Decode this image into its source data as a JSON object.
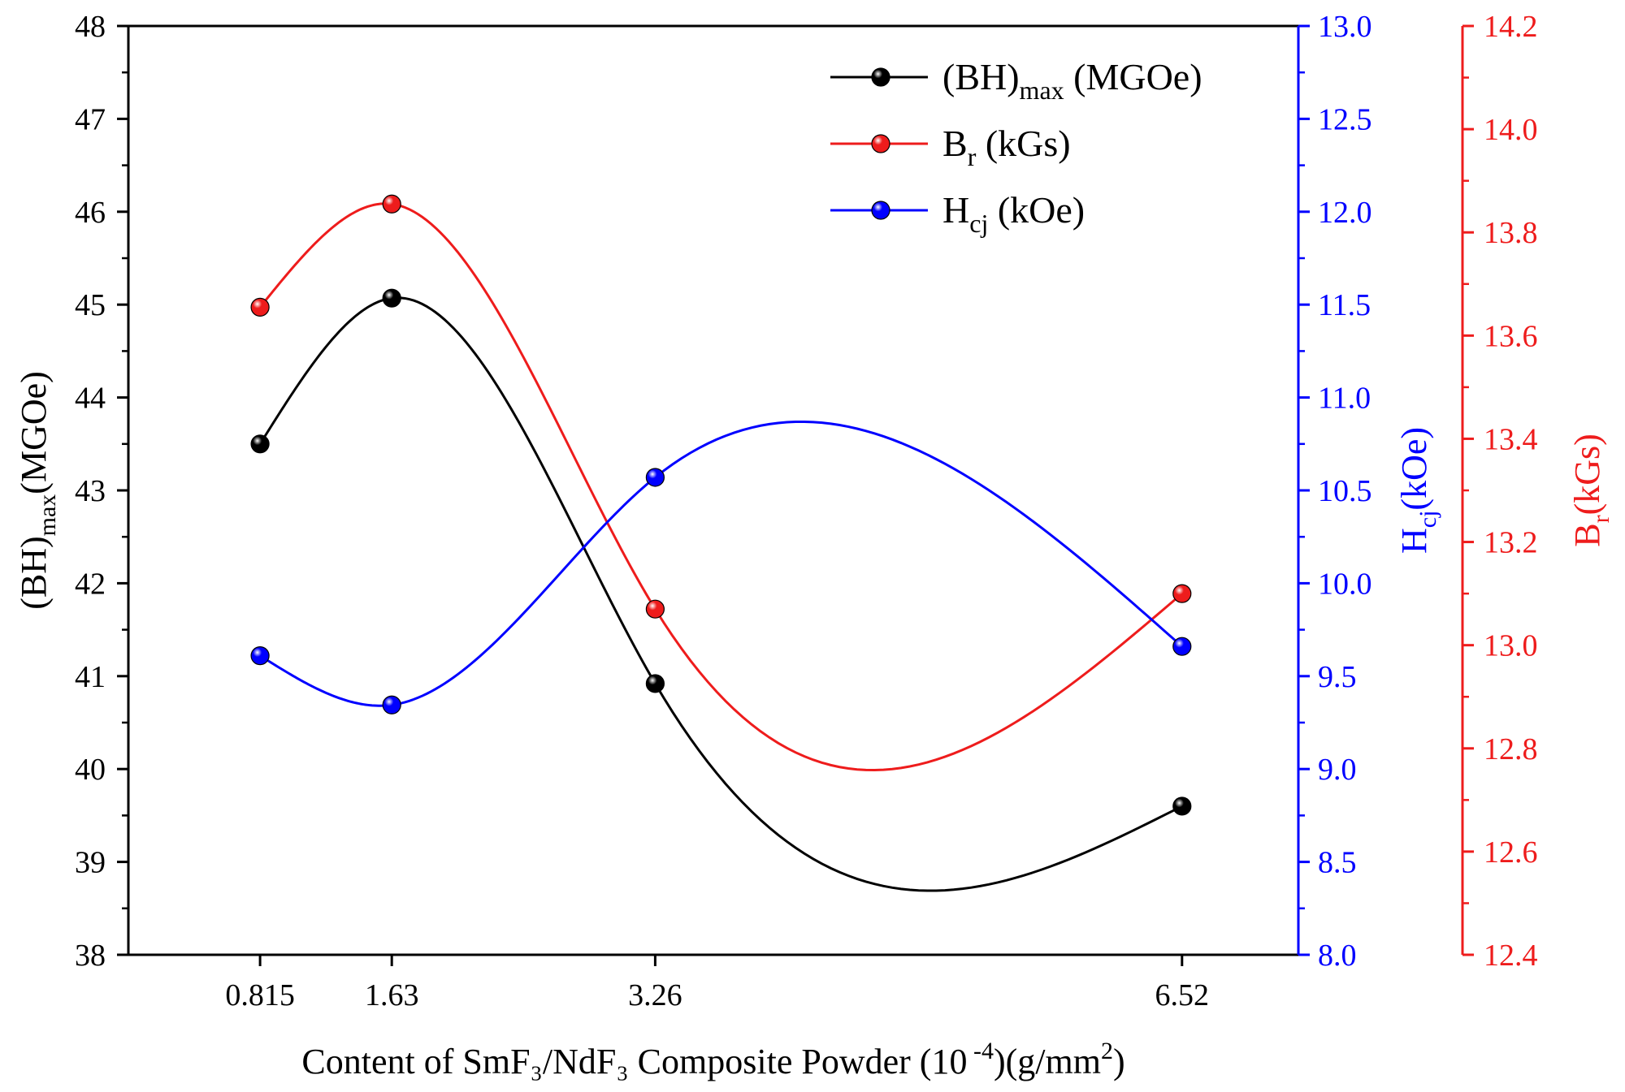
{
  "chart_data": {
    "type": "line",
    "x": [
      0.815,
      1.63,
      3.26,
      6.52
    ],
    "x_tick_labels": [
      "0.815",
      "1.63",
      "3.26",
      "6.52"
    ],
    "xlabel": {
      "prefix": "Content of  SmF₃/NdF₃ Composite Powder (10",
      "exp": " -4",
      "mid": ")(g/mm",
      "exp2": "2",
      "suffix": ")"
    },
    "axes": {
      "left": {
        "label_main": "(BH)",
        "label_sub": "max",
        "label_tail": "(MGOe)",
        "ylim": [
          38,
          48
        ],
        "ticks": [
          "38",
          "39",
          "40",
          "41",
          "42",
          "43",
          "44",
          "45",
          "46",
          "47",
          "48"
        ],
        "color": "#000000"
      },
      "right1": {
        "label_main": "H",
        "label_sub": "cj",
        "label_tail": "(kOe)",
        "ylim": [
          8.0,
          13.0
        ],
        "ticks": [
          "8.0",
          "8.5",
          "9.0",
          "9.5",
          "10.0",
          "10.5",
          "11.0",
          "11.5",
          "12.0",
          "12.5",
          "13.0"
        ],
        "color": "#0000ff"
      },
      "right2": {
        "label_main": "B",
        "label_sub": "r",
        "label_tail": "(kGs)",
        "ylim": [
          12.4,
          14.2
        ],
        "ticks": [
          "12.4",
          "12.6",
          "12.8",
          "13.0",
          "13.2",
          "13.4",
          "13.6",
          "13.8",
          "14.0",
          "14.2"
        ],
        "color": "#ee1c1c"
      }
    },
    "series": [
      {
        "name_main": "(BH)",
        "name_sub": "max",
        "name_tail": " (MGOe)",
        "axis": "left",
        "color": "#000000",
        "values": [
          43.5,
          45.07,
          40.92,
          39.6
        ]
      },
      {
        "name_main": "B",
        "name_sub": "r",
        "name_tail": " (kGs)",
        "axis": "right2",
        "color": "#ee1c1c",
        "values": [
          13.655,
          13.855,
          13.07,
          13.1
        ]
      },
      {
        "name_main": "H",
        "name_sub": "cj",
        "name_tail": " (kOe)",
        "axis": "right1",
        "color": "#0000ff",
        "values": [
          9.61,
          9.345,
          10.57,
          9.66
        ]
      }
    ],
    "legend_position": "top-right"
  }
}
